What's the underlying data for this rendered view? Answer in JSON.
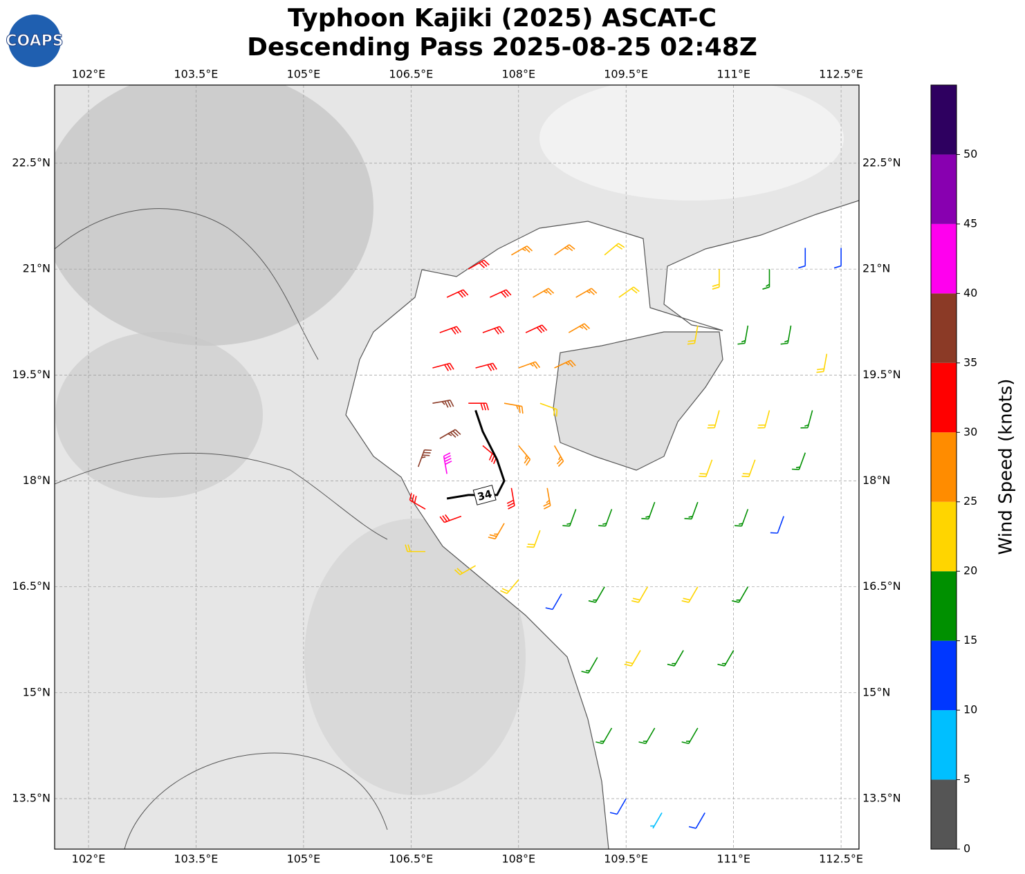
{
  "chart_data": {
    "type": "barbs",
    "title": [
      "Typhoon Kajiki (2025) ASCAT-C",
      "Descending Pass 2025-08-25 02:48Z"
    ],
    "logo": "COAPS",
    "xlim": [
      101.527,
      112.75
    ],
    "ylim": [
      12.785,
      23.607
    ],
    "xticks": [
      {
        "value": 102,
        "label": "102°E"
      },
      {
        "value": 103.5,
        "label": "103.5°E"
      },
      {
        "value": 105,
        "label": "105°E"
      },
      {
        "value": 106.5,
        "label": "106.5°E"
      },
      {
        "value": 108,
        "label": "108°E"
      },
      {
        "value": 109.5,
        "label": "109.5°E"
      },
      {
        "value": 111,
        "label": "111°E"
      },
      {
        "value": 112.5,
        "label": "112.5°E"
      }
    ],
    "yticks": [
      {
        "value": 13.5,
        "label": "13.5°N"
      },
      {
        "value": 15,
        "label": "15°N"
      },
      {
        "value": 16.5,
        "label": "16.5°N"
      },
      {
        "value": 18,
        "label": "18°N"
      },
      {
        "value": 19.5,
        "label": "19.5°N"
      },
      {
        "value": 21,
        "label": "21°N"
      },
      {
        "value": 22.5,
        "label": "22.5°N"
      }
    ],
    "grid": true,
    "colorbar": {
      "label": "Wind Speed (knots)",
      "lim": [
        0,
        55
      ],
      "ticks": [
        0,
        5,
        10,
        15,
        20,
        25,
        30,
        35,
        40,
        45,
        50
      ],
      "bounds": [
        0,
        5,
        10,
        15,
        20,
        25,
        30,
        35,
        40,
        45,
        50,
        55
      ],
      "colors": [
        "#555555",
        "#00bfff",
        "#0037ff",
        "#009000",
        "#ffd500",
        "#ff8c00",
        "#ff0000",
        "#8b3a26",
        "#ff00ee",
        "#8800b0",
        "#2e0060"
      ]
    },
    "barbs": [
      [
        107.3,
        21.0,
        31,
        60
      ],
      [
        107.9,
        21.2,
        28,
        60
      ],
      [
        108.5,
        21.2,
        27,
        55
      ],
      [
        109.2,
        21.2,
        23,
        50
      ],
      [
        107.0,
        20.6,
        32,
        65
      ],
      [
        107.6,
        20.6,
        33,
        65
      ],
      [
        108.2,
        20.6,
        28,
        60
      ],
      [
        108.8,
        20.6,
        27,
        60
      ],
      [
        109.4,
        20.6,
        24,
        55
      ],
      [
        106.9,
        20.1,
        33,
        70
      ],
      [
        107.5,
        20.1,
        34,
        70
      ],
      [
        108.1,
        20.1,
        31,
        65
      ],
      [
        108.7,
        20.1,
        28,
        60
      ],
      [
        106.8,
        19.6,
        32,
        75
      ],
      [
        107.4,
        19.6,
        31,
        75
      ],
      [
        108.0,
        19.6,
        28,
        70
      ],
      [
        108.5,
        19.6,
        26,
        65
      ],
      [
        106.8,
        19.1,
        37,
        80
      ],
      [
        107.3,
        19.1,
        31,
        90
      ],
      [
        107.8,
        19.1,
        27,
        100
      ],
      [
        108.3,
        19.1,
        23,
        110
      ],
      [
        106.9,
        18.6,
        38,
        60
      ],
      [
        107.5,
        18.5,
        34,
        130
      ],
      [
        108.0,
        18.5,
        28,
        140
      ],
      [
        108.5,
        18.5,
        25,
        150
      ],
      [
        106.6,
        18.2,
        37,
        20
      ],
      [
        107.0,
        18.1,
        42,
        350
      ],
      [
        107.9,
        17.9,
        32,
        170
      ],
      [
        108.4,
        17.9,
        26,
        170
      ],
      [
        106.7,
        17.6,
        33,
        300
      ],
      [
        107.2,
        17.5,
        31,
        250
      ],
      [
        107.8,
        17.4,
        27,
        210
      ],
      [
        108.3,
        17.3,
        24,
        200
      ],
      [
        106.7,
        17.0,
        22,
        270
      ],
      [
        107.4,
        16.8,
        23,
        240
      ],
      [
        108.0,
        16.6,
        24,
        220
      ],
      [
        108.8,
        17.6,
        18,
        200
      ],
      [
        109.3,
        17.6,
        17,
        200
      ],
      [
        109.9,
        17.7,
        18,
        200
      ],
      [
        110.5,
        17.7,
        17,
        200
      ],
      [
        111.2,
        17.6,
        16,
        200
      ],
      [
        111.7,
        17.5,
        13,
        200
      ],
      [
        108.6,
        16.4,
        13,
        210
      ],
      [
        109.2,
        16.5,
        18,
        210
      ],
      [
        109.8,
        16.5,
        21,
        210
      ],
      [
        110.5,
        16.5,
        22,
        210
      ],
      [
        111.2,
        16.5,
        18,
        210
      ],
      [
        109.1,
        15.5,
        17,
        210
      ],
      [
        109.7,
        15.6,
        21,
        210
      ],
      [
        110.3,
        15.6,
        19,
        210
      ],
      [
        111.0,
        15.6,
        18,
        210
      ],
      [
        109.3,
        14.5,
        16,
        210
      ],
      [
        109.9,
        14.5,
        18,
        210
      ],
      [
        110.5,
        14.5,
        17,
        210
      ],
      [
        109.5,
        13.5,
        12,
        210
      ],
      [
        110.0,
        13.3,
        8,
        210
      ],
      [
        110.6,
        13.3,
        12,
        210
      ],
      [
        110.5,
        20.2,
        22,
        190
      ],
      [
        111.2,
        20.2,
        18,
        190
      ],
      [
        111.8,
        20.2,
        18,
        190
      ],
      [
        112.3,
        19.8,
        22,
        190
      ],
      [
        110.8,
        19.0,
        22,
        195
      ],
      [
        111.5,
        19.0,
        22,
        195
      ],
      [
        112.1,
        19.0,
        19,
        195
      ],
      [
        110.7,
        18.3,
        21,
        200
      ],
      [
        111.3,
        18.3,
        22,
        200
      ],
      [
        112.0,
        18.4,
        18,
        200
      ],
      [
        110.8,
        21.0,
        21,
        180
      ],
      [
        111.5,
        21.0,
        18,
        180
      ],
      [
        112.0,
        21.3,
        13,
        180
      ],
      [
        112.5,
        21.3,
        13,
        180
      ]
    ],
    "contour": {
      "level": 34,
      "lon": [
        107.4,
        107.5,
        107.7,
        107.8,
        107.7,
        107.3,
        107.0
      ],
      "lat": [
        19.0,
        18.7,
        18.3,
        18.0,
        17.8,
        17.8,
        17.75
      ]
    }
  }
}
